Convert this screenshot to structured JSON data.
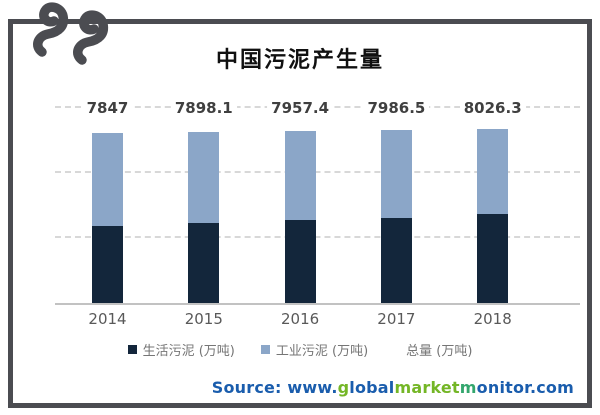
{
  "title": "中国污泥产生量",
  "chart_data": {
    "type": "bar",
    "stacked": true,
    "title": "中国污泥产生量",
    "categories": [
      "2014",
      "2015",
      "2016",
      "2017",
      "2018"
    ],
    "series": [
      {
        "name": "生活污泥 (万吨)",
        "color": "#13263b",
        "values": [
          3550,
          3690,
          3830,
          3930,
          4110
        ],
        "estimated_from_pixels": true
      },
      {
        "name": "工业污泥 (万吨)",
        "color": "#8ba6c8",
        "values": [
          4297,
          4208.1,
          4127.4,
          4056.5,
          3916.3
        ],
        "estimated_from_pixels": true
      }
    ],
    "totals": [
      7847,
      7898.1,
      7957.4,
      7986.5,
      8026.3
    ],
    "total_labels": [
      "7847",
      "7898.1",
      "7957.4",
      "7986.5",
      "8026.3"
    ],
    "xlabel": "",
    "ylabel": "",
    "ylim": [
      0,
      9600
    ],
    "gridline_values": [
      3000,
      6000,
      9000
    ],
    "grid_style": "dashed",
    "legend_position": "bottom"
  },
  "legend": {
    "items": [
      {
        "label": "生活污泥 (万吨)",
        "swatch": "#13263b"
      },
      {
        "label": "工业污泥 (万吨)",
        "swatch": "#8ba6c8"
      },
      {
        "label": "总量 (万吨)",
        "swatch": null
      }
    ]
  },
  "source": {
    "segments": [
      {
        "text": "Source: www.",
        "color": "#1a5dad"
      },
      {
        "text": "g",
        "color": "#74b626"
      },
      {
        "text": "lobal",
        "color": "#1a5dad"
      },
      {
        "text": "market",
        "color": "#74b626"
      },
      {
        "text": "m",
        "color": "#33a66d"
      },
      {
        "text": "onitor.com",
        "color": "#1a5dad"
      }
    ]
  },
  "colors": {
    "frame_and_logo": "#4b4c51",
    "bar_dark": "#13263b",
    "bar_light": "#8ba6c8",
    "gridline": "#d8d8d8",
    "baseline": "#c2c2c2",
    "value_label": "#3f3f3f",
    "year_label": "#595959",
    "legend_text": "#757575",
    "source_blue": "#1a5dad",
    "source_green": "#74b626"
  }
}
